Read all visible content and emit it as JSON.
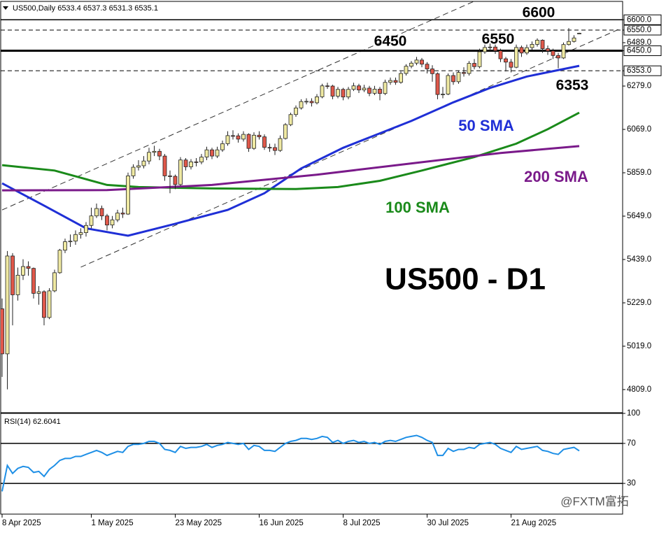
{
  "watermark": "@FXTM富拓",
  "chart_data": [
    {
      "type": "candlestick",
      "title": "US500,Daily 6533.4 6537.3 6531.3 6535.1",
      "categories": [
        "8 Apr 2025",
        null,
        null,
        null,
        null,
        null,
        null,
        null,
        null,
        null,
        null,
        null,
        null,
        null,
        null,
        null,
        null,
        "1 May 2025",
        null,
        null,
        null,
        null,
        null,
        null,
        null,
        null,
        null,
        null,
        null,
        null,
        null,
        null,
        null,
        "23 May 2025",
        null,
        null,
        null,
        null,
        null,
        null,
        null,
        null,
        null,
        null,
        null,
        null,
        null,
        null,
        null,
        "16 Jun 2025",
        null,
        null,
        null,
        null,
        null,
        null,
        null,
        null,
        null,
        null,
        null,
        null,
        null,
        null,
        null,
        "8 Jul 2025",
        null,
        null,
        null,
        null,
        null,
        null,
        null,
        null,
        null,
        null,
        null,
        null,
        null,
        null,
        null,
        "30 Jul 2025",
        null,
        null,
        null,
        null,
        null,
        null,
        null,
        null,
        null,
        null,
        null,
        null,
        null,
        null,
        null,
        "21 Aug 2025",
        null,
        null,
        null,
        null,
        null,
        null,
        null,
        null,
        null,
        null,
        null,
        null,
        null
      ],
      "open": [
        5200,
        4982,
        5456,
        5268,
        5363,
        5405,
        5396,
        5275,
        5283,
        5158,
        5287,
        5375,
        5484,
        5525,
        5528,
        5560,
        5569,
        5604,
        5650,
        5686,
        5650,
        5606,
        5631,
        5664,
        5659,
        5844,
        5886,
        5893,
        5916,
        5958,
        5963,
        5940,
        5844,
        5842,
        5802,
        5921,
        5888,
        5912,
        5911,
        5935,
        5970,
        5940,
        5970,
        6000,
        6039,
        6038,
        6022,
        6045,
        5977,
        6041,
        6033,
        5982,
        5981,
        5967,
        6025,
        6092,
        6141,
        6173,
        6204,
        6205,
        6198,
        6227,
        6280,
        6279,
        6230,
        6263,
        6226,
        6263,
        6280,
        6260,
        6269,
        6244,
        6264,
        6243,
        6297,
        6306,
        6297,
        6340,
        6375,
        6390,
        6405,
        6385,
        6362,
        6339,
        6238,
        6240,
        6330,
        6300,
        6345,
        6340,
        6389,
        6373,
        6445,
        6466,
        6468,
        6450,
        6411,
        6395,
        6370,
        6466,
        6439,
        6465,
        6481,
        6501,
        6460,
        6449,
        6427,
        6415,
        6480,
        6495,
        6533.4
      ],
      "high": [
        5250,
        5480,
        5470,
        5400,
        5440,
        5430,
        5400,
        5310,
        5290,
        5300,
        5390,
        5490,
        5540,
        5560,
        5580,
        5590,
        5620,
        5690,
        5710,
        5700,
        5660,
        5650,
        5680,
        5690,
        5860,
        5900,
        5920,
        5940,
        5980,
        5990,
        5975,
        5950,
        5870,
        5850,
        5935,
        5930,
        5925,
        5930,
        5950,
        5985,
        5980,
        5985,
        6015,
        6060,
        6065,
        6050,
        6060,
        6050,
        6055,
        6060,
        6045,
        6000,
        6000,
        6040,
        6100,
        6150,
        6185,
        6215,
        6220,
        6220,
        6240,
        6290,
        6295,
        6285,
        6275,
        6270,
        6275,
        6295,
        6290,
        6285,
        6280,
        6280,
        6275,
        6310,
        6320,
        6320,
        6350,
        6385,
        6400,
        6420,
        6415,
        6395,
        6380,
        6345,
        6275,
        6340,
        6345,
        6355,
        6370,
        6400,
        6410,
        6460,
        6480,
        6485,
        6480,
        6460,
        6420,
        6410,
        6480,
        6475,
        6480,
        6495,
        6510,
        6505,
        6475,
        6460,
        6440,
        6490,
        6560,
        6525,
        6537.3
      ],
      "low": [
        4870,
        4810,
        5120,
        5240,
        5340,
        5360,
        5250,
        5220,
        5120,
        5150,
        5280,
        5370,
        5470,
        5500,
        5510,
        5540,
        5550,
        5590,
        5640,
        5630,
        5580,
        5590,
        5620,
        5640,
        5655,
        5830,
        5870,
        5880,
        5900,
        5940,
        5920,
        5820,
        5760,
        5780,
        5795,
        5870,
        5875,
        5890,
        5900,
        5920,
        5925,
        5930,
        5960,
        5990,
        6020,
        6005,
        6010,
        5960,
        5970,
        6020,
        5970,
        5960,
        5945,
        5960,
        6020,
        6085,
        6130,
        6165,
        6190,
        6180,
        6190,
        6220,
        6265,
        6215,
        6220,
        6210,
        6215,
        6255,
        6245,
        6250,
        6230,
        6235,
        6210,
        6235,
        6285,
        6285,
        6290,
        6330,
        6365,
        6380,
        6370,
        6340,
        6300,
        6215,
        6220,
        6235,
        6285,
        6290,
        6325,
        6330,
        6360,
        6365,
        6435,
        6450,
        6435,
        6395,
        6350,
        6345,
        6365,
        6420,
        6430,
        6455,
        6470,
        6440,
        6430,
        6410,
        6365,
        6410,
        6475,
        6490,
        6531.3
      ],
      "close": [
        4982,
        5456,
        5268,
        5363,
        5405,
        5396,
        5275,
        5283,
        5158,
        5287,
        5375,
        5484,
        5525,
        5528,
        5560,
        5569,
        5604,
        5650,
        5686,
        5650,
        5606,
        5631,
        5664,
        5659,
        5844,
        5886,
        5893,
        5916,
        5958,
        5963,
        5940,
        5844,
        5842,
        5802,
        5921,
        5888,
        5912,
        5911,
        5935,
        5970,
        5940,
        5970,
        6000,
        6039,
        6038,
        6022,
        6045,
        5977,
        6041,
        6033,
        5982,
        5981,
        5967,
        6025,
        6092,
        6141,
        6173,
        6204,
        6205,
        6198,
        6227,
        6280,
        6279,
        6230,
        6263,
        6226,
        6263,
        6280,
        6260,
        6269,
        6244,
        6264,
        6243,
        6297,
        6306,
        6297,
        6340,
        6375,
        6390,
        6405,
        6385,
        6362,
        6339,
        6238,
        6240,
        6330,
        6300,
        6345,
        6340,
        6389,
        6373,
        6445,
        6466,
        6468,
        6450,
        6411,
        6395,
        6370,
        6466,
        6439,
        6465,
        6481,
        6501,
        6460,
        6449,
        6427,
        6415,
        6480,
        6495,
        6512,
        6535.1
      ],
      "up_color": "#efe9a2",
      "down_color": "#e0584a",
      "ylim": [
        4697,
        6689
      ],
      "yticks": [
        {
          "value": 6600,
          "label": "6600.0"
        },
        {
          "value": 6550,
          "label": "6550.0"
        },
        {
          "value": 6489,
          "label": "6489.0"
        },
        {
          "value": 6450,
          "label": "6450.0"
        },
        {
          "value": 6353,
          "label": "6353.0"
        },
        {
          "value": 6279,
          "label": "6279.0"
        },
        {
          "value": 6069,
          "label": "6069.0"
        },
        {
          "value": 5859,
          "label": "5859.0"
        },
        {
          "value": 5649,
          "label": "5649.0"
        },
        {
          "value": 5439,
          "label": "5439.0"
        },
        {
          "value": 5229,
          "label": "5229.0"
        },
        {
          "value": 5019,
          "label": "5019.0"
        },
        {
          "value": 4809,
          "label": "4809.0"
        }
      ],
      "hlines": [
        {
          "value": 6600,
          "style": "solid"
        },
        {
          "value": 6550,
          "style": "dashed"
        },
        {
          "value": 6450,
          "style": "thick"
        },
        {
          "value": 6353,
          "style": "dashed"
        }
      ],
      "channel": [
        {
          "x": [
            0,
            90
          ],
          "y": [
            5679,
            6690
          ]
        },
        {
          "x": [
            15,
            118
          ],
          "y": [
            5402,
            6559
          ]
        }
      ],
      "series": [
        {
          "name": "50 SMA",
          "color": "#1f2fd6",
          "x": [
            0,
            8,
            16,
            24,
            33,
            43,
            50,
            57,
            65,
            72,
            78,
            86,
            93,
            100,
            110
          ],
          "values": [
            5808,
            5700,
            5590,
            5554,
            5612,
            5679,
            5760,
            5880,
            5980,
            6050,
            6110,
            6200,
            6270,
            6325,
            6377
          ]
        },
        {
          "name": "100 SMA",
          "color": "#1a8a1a",
          "x": [
            0,
            10,
            20,
            26,
            40,
            56,
            64,
            72,
            80,
            90,
            98,
            104,
            110
          ],
          "values": [
            5896,
            5870,
            5800,
            5790,
            5783,
            5780,
            5790,
            5820,
            5870,
            5935,
            6000,
            6070,
            6150
          ]
        },
        {
          "name": "200 SMA",
          "color": "#7a1a8a",
          "x": [
            0,
            20,
            40,
            60,
            80,
            95,
            110
          ],
          "values": [
            5774,
            5775,
            5800,
            5850,
            5910,
            5955,
            5988
          ]
        }
      ],
      "annotation": "US500 - D1"
    },
    {
      "type": "line",
      "title": "RSI(14)",
      "color": "#1e8fe6",
      "values": [
        22,
        48,
        40,
        45,
        47,
        46,
        41,
        42,
        37,
        44,
        48,
        53,
        55,
        55,
        57,
        57,
        59,
        61,
        63,
        61,
        58,
        60,
        62,
        61,
        67,
        69,
        69,
        70,
        72,
        72,
        70,
        64,
        63,
        61,
        67,
        65,
        66,
        66,
        67,
        69,
        66,
        68,
        69,
        71,
        70,
        69,
        70,
        64,
        68,
        67,
        63,
        63,
        62,
        66,
        70,
        72,
        73,
        75,
        75,
        74,
        75,
        77,
        76,
        71,
        73,
        70,
        72,
        73,
        71,
        72,
        70,
        71,
        69,
        72,
        73,
        72,
        74,
        76,
        77,
        78,
        76,
        73,
        71,
        58,
        58,
        65,
        62,
        64,
        64,
        66,
        65,
        69,
        70,
        71,
        69,
        65,
        63,
        61,
        67,
        64,
        65,
        66,
        67,
        63,
        62,
        60,
        59,
        64,
        65,
        66,
        62.6041
      ],
      "ylim": [
        0,
        100
      ],
      "yticks": [
        100,
        70,
        30
      ],
      "hlines": [
        {
          "value": 70,
          "style": "solid"
        },
        {
          "value": 30,
          "style": "solid"
        }
      ]
    }
  ]
}
